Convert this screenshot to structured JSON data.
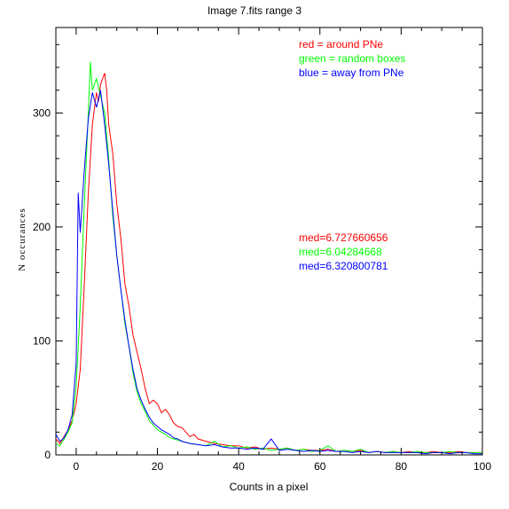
{
  "chart_data": {
    "type": "line",
    "title": "Image 7.fits   range 3",
    "xlabel": "Counts in a pixel",
    "ylabel": "N occurances",
    "xlim": [
      -5,
      100
    ],
    "ylim": [
      0,
      375
    ],
    "xticks": [
      0,
      20,
      40,
      60,
      80,
      100
    ],
    "yticks": [
      0,
      100,
      200,
      300
    ],
    "grid": false,
    "legend": [
      {
        "text": "red = around PNe",
        "color": "#ff0000"
      },
      {
        "text": "green = random boxes",
        "color": "#00ff00"
      },
      {
        "text": "blue = away from PNe",
        "color": "#0000ff"
      }
    ],
    "annotations": [
      {
        "text": "med=6.727660656",
        "color": "#ff0000"
      },
      {
        "text": "med=6.04284668",
        "color": "#00ff00"
      },
      {
        "text": "med=6.320800781",
        "color": "#0000ff"
      }
    ],
    "series": [
      {
        "color": "#ff0000",
        "points": [
          [
            -5,
            14
          ],
          [
            -4,
            10
          ],
          [
            -3,
            16
          ],
          [
            -2,
            22
          ],
          [
            -1,
            30
          ],
          [
            0,
            45
          ],
          [
            1,
            75
          ],
          [
            2,
            150
          ],
          [
            3,
            230
          ],
          [
            4,
            290
          ],
          [
            5,
            318
          ],
          [
            5.5,
            310
          ],
          [
            6,
            325
          ],
          [
            7,
            335
          ],
          [
            7.5,
            320
          ],
          [
            8,
            290
          ],
          [
            9,
            265
          ],
          [
            10,
            220
          ],
          [
            11,
            190
          ],
          [
            12,
            150
          ],
          [
            13,
            130
          ],
          [
            14,
            105
          ],
          [
            15,
            90
          ],
          [
            16,
            75
          ],
          [
            17,
            58
          ],
          [
            18,
            45
          ],
          [
            19,
            48
          ],
          [
            20,
            45
          ],
          [
            21,
            37
          ],
          [
            22,
            40
          ],
          [
            23,
            35
          ],
          [
            24,
            28
          ],
          [
            25,
            25
          ],
          [
            26,
            24
          ],
          [
            27,
            20
          ],
          [
            28,
            16
          ],
          [
            29,
            18
          ],
          [
            30,
            14
          ],
          [
            32,
            12
          ],
          [
            34,
            10
          ],
          [
            36,
            9
          ],
          [
            38,
            8
          ],
          [
            40,
            8
          ],
          [
            42,
            6
          ],
          [
            44,
            7
          ],
          [
            46,
            5
          ],
          [
            48,
            6
          ],
          [
            50,
            5
          ],
          [
            52,
            6
          ],
          [
            54,
            4
          ],
          [
            56,
            5
          ],
          [
            58,
            4
          ],
          [
            60,
            4
          ],
          [
            62,
            5
          ],
          [
            64,
            3
          ],
          [
            66,
            4
          ],
          [
            68,
            3
          ],
          [
            70,
            4
          ],
          [
            72,
            2
          ],
          [
            74,
            3
          ],
          [
            76,
            2
          ],
          [
            78,
            3
          ],
          [
            80,
            2
          ],
          [
            82,
            3
          ],
          [
            84,
            2
          ],
          [
            86,
            2
          ],
          [
            88,
            3
          ],
          [
            90,
            2
          ],
          [
            92,
            2
          ],
          [
            94,
            3
          ],
          [
            96,
            2
          ],
          [
            98,
            2
          ],
          [
            100,
            2
          ]
        ]
      },
      {
        "color": "#00ff00",
        "points": [
          [
            -5,
            10
          ],
          [
            -4,
            8
          ],
          [
            -3,
            14
          ],
          [
            -2,
            20
          ],
          [
            -1,
            28
          ],
          [
            0,
            60
          ],
          [
            1,
            130
          ],
          [
            2,
            220
          ],
          [
            3,
            300
          ],
          [
            3.5,
            345
          ],
          [
            4,
            320
          ],
          [
            5,
            330
          ],
          [
            6,
            315
          ],
          [
            7,
            300
          ],
          [
            8,
            260
          ],
          [
            9,
            210
          ],
          [
            10,
            175
          ],
          [
            11,
            145
          ],
          [
            12,
            115
          ],
          [
            13,
            95
          ],
          [
            14,
            72
          ],
          [
            15,
            55
          ],
          [
            16,
            45
          ],
          [
            17,
            38
          ],
          [
            18,
            30
          ],
          [
            19,
            26
          ],
          [
            20,
            22
          ],
          [
            21,
            20
          ],
          [
            22,
            18
          ],
          [
            23,
            15
          ],
          [
            24,
            14
          ],
          [
            25,
            13
          ],
          [
            26,
            12
          ],
          [
            27,
            11
          ],
          [
            28,
            10
          ],
          [
            30,
            9
          ],
          [
            32,
            8
          ],
          [
            34,
            12
          ],
          [
            36,
            7
          ],
          [
            38,
            8
          ],
          [
            40,
            6
          ],
          [
            42,
            7
          ],
          [
            44,
            5
          ],
          [
            46,
            6
          ],
          [
            48,
            4
          ],
          [
            50,
            5
          ],
          [
            52,
            6
          ],
          [
            54,
            4
          ],
          [
            56,
            5
          ],
          [
            58,
            3
          ],
          [
            60,
            4
          ],
          [
            62,
            8
          ],
          [
            64,
            3
          ],
          [
            66,
            4
          ],
          [
            68,
            3
          ],
          [
            70,
            5
          ],
          [
            72,
            2
          ],
          [
            74,
            3
          ],
          [
            76,
            2
          ],
          [
            78,
            3
          ],
          [
            80,
            2
          ],
          [
            82,
            2
          ],
          [
            84,
            3
          ],
          [
            86,
            2
          ],
          [
            88,
            2
          ],
          [
            90,
            2
          ],
          [
            92,
            3
          ],
          [
            94,
            2
          ],
          [
            96,
            2
          ],
          [
            98,
            2
          ],
          [
            100,
            2
          ]
        ]
      },
      {
        "color": "#0000ff",
        "points": [
          [
            -5,
            18
          ],
          [
            -4,
            12
          ],
          [
            -3,
            15
          ],
          [
            -2,
            22
          ],
          [
            -1,
            35
          ],
          [
            0,
            80
          ],
          [
            0.5,
            230
          ],
          [
            1,
            195
          ],
          [
            2,
            250
          ],
          [
            3,
            295
          ],
          [
            4,
            318
          ],
          [
            5,
            305
          ],
          [
            6,
            320
          ],
          [
            7,
            290
          ],
          [
            8,
            255
          ],
          [
            9,
            215
          ],
          [
            10,
            175
          ],
          [
            11,
            145
          ],
          [
            12,
            118
          ],
          [
            13,
            95
          ],
          [
            14,
            75
          ],
          [
            15,
            58
          ],
          [
            16,
            48
          ],
          [
            17,
            40
          ],
          [
            18,
            33
          ],
          [
            19,
            28
          ],
          [
            20,
            25
          ],
          [
            21,
            22
          ],
          [
            22,
            20
          ],
          [
            23,
            18
          ],
          [
            24,
            15
          ],
          [
            25,
            14
          ],
          [
            26,
            12
          ],
          [
            27,
            11
          ],
          [
            28,
            10
          ],
          [
            30,
            9
          ],
          [
            32,
            8
          ],
          [
            34,
            9
          ],
          [
            36,
            7
          ],
          [
            38,
            6
          ],
          [
            40,
            6
          ],
          [
            42,
            5
          ],
          [
            44,
            6
          ],
          [
            46,
            5
          ],
          [
            48,
            14
          ],
          [
            50,
            4
          ],
          [
            52,
            5
          ],
          [
            54,
            4
          ],
          [
            56,
            3
          ],
          [
            58,
            4
          ],
          [
            60,
            3
          ],
          [
            62,
            4
          ],
          [
            64,
            3
          ],
          [
            66,
            3
          ],
          [
            68,
            2
          ],
          [
            70,
            3
          ],
          [
            72,
            2
          ],
          [
            74,
            3
          ],
          [
            76,
            2
          ],
          [
            78,
            2
          ],
          [
            80,
            2
          ],
          [
            82,
            2
          ],
          [
            84,
            2
          ],
          [
            86,
            1
          ],
          [
            88,
            2
          ],
          [
            90,
            2
          ],
          [
            92,
            1
          ],
          [
            94,
            2
          ],
          [
            96,
            2
          ],
          [
            98,
            1
          ],
          [
            100,
            1
          ]
        ]
      }
    ]
  }
}
